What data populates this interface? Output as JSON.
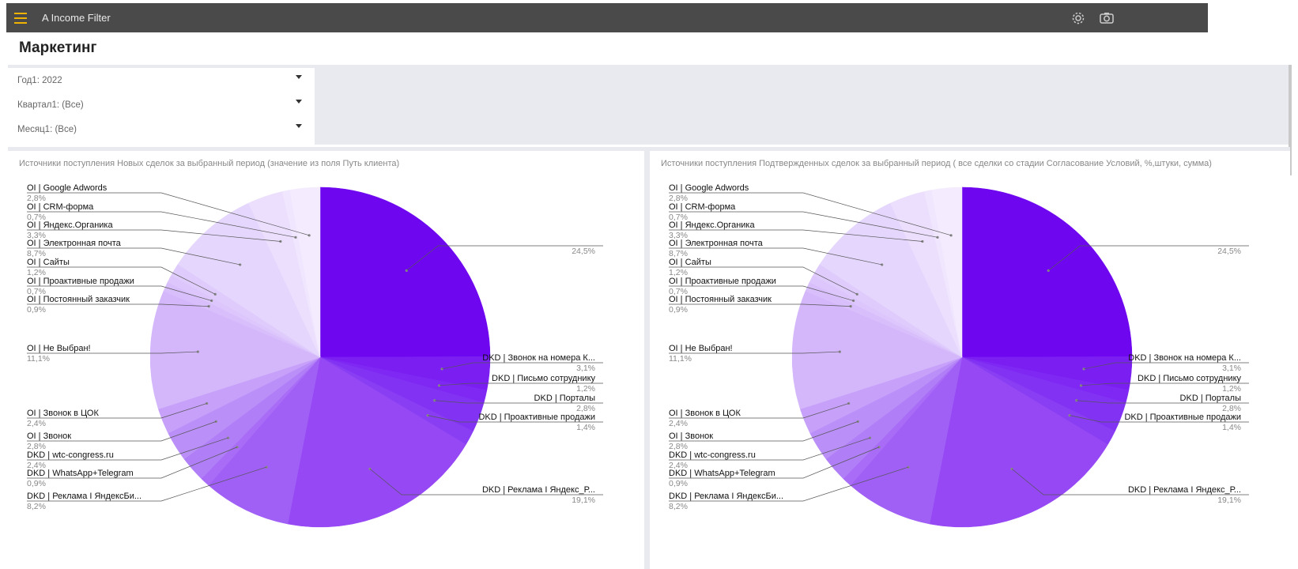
{
  "app": {
    "title": "A Income Filter"
  },
  "page": {
    "title": "Маркетинг"
  },
  "filters": [
    {
      "label": "Год1: 2022"
    },
    {
      "label": "Квартал1: (Все)"
    },
    {
      "label": "Месяц1: (Все)"
    }
  ],
  "colors": {
    "topbar": "#4a4a4a",
    "menu_icon": "#f0b400",
    "slice_main": "#6b00f0"
  },
  "chart_data": [
    {
      "type": "pie",
      "title": "Источники поступления Новых сделок за выбранный период (значение из поля Путь клиента)",
      "slices": [
        {
          "label": "",
          "value": 24.5,
          "value_label": "24,5%",
          "color": "#6e06f0"
        },
        {
          "label": "DKD | Звонок на номера К...",
          "value": 3.1,
          "value_label": "3,1%",
          "color": "#7a1ef2"
        },
        {
          "label": "DKD | Письмо сотруднику",
          "value": 1.2,
          "value_label": "1,2%",
          "color": "#7f28f3"
        },
        {
          "label": "DKD | Порталы",
          "value": 2.8,
          "value_label": "2,8%",
          "color": "#8232f3"
        },
        {
          "label": "DKD | Проактивные продажи",
          "value": 1.4,
          "value_label": "1,4%",
          "color": "#8a3ef4"
        },
        {
          "label": "DKD | Реклама I Яндекс_Р...",
          "value": 19.1,
          "value_label": "19,1%",
          "color": "#9548f4"
        },
        {
          "label": "DKD | Реклама I ЯндексБи...",
          "value": 8.2,
          "value_label": "8,2%",
          "color": "#a060f5"
        },
        {
          "label": "DKD | WhatsApp+Telegram",
          "value": 0.9,
          "value_label": "0,9%",
          "color": "#a86cf6"
        },
        {
          "label": "DKD | wtc-congress.ru",
          "value": 2.4,
          "value_label": "2,4%",
          "color": "#b07ef7"
        },
        {
          "label": "OI | Звонок",
          "value": 2.8,
          "value_label": "2,8%",
          "color": "#ba8ff8"
        },
        {
          "label": "OI | Звонок в ЦОК",
          "value": 2.4,
          "value_label": "2,4%",
          "color": "#c6a0f9"
        },
        {
          "label": "OI | Не Выбран!",
          "value": 11.1,
          "value_label": "11,1%",
          "color": "#d4b6fb"
        },
        {
          "label": "OI | Постоянный заказчик",
          "value": 0.9,
          "value_label": "0,9%",
          "color": "#d8bffb"
        },
        {
          "label": "OI | Проактивные продажи",
          "value": 0.7,
          "value_label": "0,7%",
          "color": "#dcc6fc"
        },
        {
          "label": "OI | Сайты",
          "value": 1.2,
          "value_label": "1,2%",
          "color": "#dfcbfc"
        },
        {
          "label": "OI | Электронная почта",
          "value": 8.7,
          "value_label": "8,7%",
          "color": "#e5d6fd"
        },
        {
          "label": "OI | Яндекс.Органика",
          "value": 3.3,
          "value_label": "3,3%",
          "color": "#ecdffd"
        },
        {
          "label": "OI | CRM-форма",
          "value": 0.7,
          "value_label": "0,7%",
          "color": "#f0e6fe"
        },
        {
          "label": "OI | Google Adwords",
          "value": 2.8,
          "value_label": "2,8%",
          "color": "#f4ecfe"
        }
      ]
    },
    {
      "type": "pie",
      "title": "Источники поступления Подтвержденных сделок за выбранный период ( все сделки со стадии Согласование Условий, %,штуки, сумма)",
      "slices": [
        {
          "label": "",
          "value": 24.5,
          "value_label": "24,5%",
          "color": "#6e06f0"
        },
        {
          "label": "DKD | Звонок на номера К...",
          "value": 3.1,
          "value_label": "3,1%",
          "color": "#7a1ef2"
        },
        {
          "label": "DKD | Письмо сотруднику",
          "value": 1.2,
          "value_label": "1,2%",
          "color": "#7f28f3"
        },
        {
          "label": "DKD | Порталы",
          "value": 2.8,
          "value_label": "2,8%",
          "color": "#8232f3"
        },
        {
          "label": "DKD | Проактивные продажи",
          "value": 1.4,
          "value_label": "1,4%",
          "color": "#8a3ef4"
        },
        {
          "label": "DKD | Реклама I Яндекс_Р...",
          "value": 19.1,
          "value_label": "19,1%",
          "color": "#9548f4"
        },
        {
          "label": "DKD | Реклама I ЯндексБи...",
          "value": 8.2,
          "value_label": "8,2%",
          "color": "#a060f5"
        },
        {
          "label": "DKD | WhatsApp+Telegram",
          "value": 0.9,
          "value_label": "0,9%",
          "color": "#a86cf6"
        },
        {
          "label": "DKD | wtc-congress.ru",
          "value": 2.4,
          "value_label": "2,4%",
          "color": "#b07ef7"
        },
        {
          "label": "OI | Звонок",
          "value": 2.8,
          "value_label": "2,8%",
          "color": "#ba8ff8"
        },
        {
          "label": "OI | Звонок в ЦОК",
          "value": 2.4,
          "value_label": "2,4%",
          "color": "#c6a0f9"
        },
        {
          "label": "OI | Не Выбран!",
          "value": 11.1,
          "value_label": "11,1%",
          "color": "#d4b6fb"
        },
        {
          "label": "OI | Постоянный заказчик",
          "value": 0.9,
          "value_label": "0,9%",
          "color": "#d8bffb"
        },
        {
          "label": "OI | Проактивные продажи",
          "value": 0.7,
          "value_label": "0,7%",
          "color": "#dcc6fc"
        },
        {
          "label": "OI | Сайты",
          "value": 1.2,
          "value_label": "1,2%",
          "color": "#dfcbfc"
        },
        {
          "label": "OI | Электронная почта",
          "value": 8.7,
          "value_label": "8,7%",
          "color": "#e5d6fd"
        },
        {
          "label": "OI | Яндекс.Органика",
          "value": 3.3,
          "value_label": "3,3%",
          "color": "#ecdffd"
        },
        {
          "label": "OI | CRM-форма",
          "value": 0.7,
          "value_label": "0,7%",
          "color": "#f0e6fe"
        },
        {
          "label": "OI | Google Adwords",
          "value": 2.8,
          "value_label": "2,8%",
          "color": "#f4ecfe"
        }
      ]
    }
  ]
}
